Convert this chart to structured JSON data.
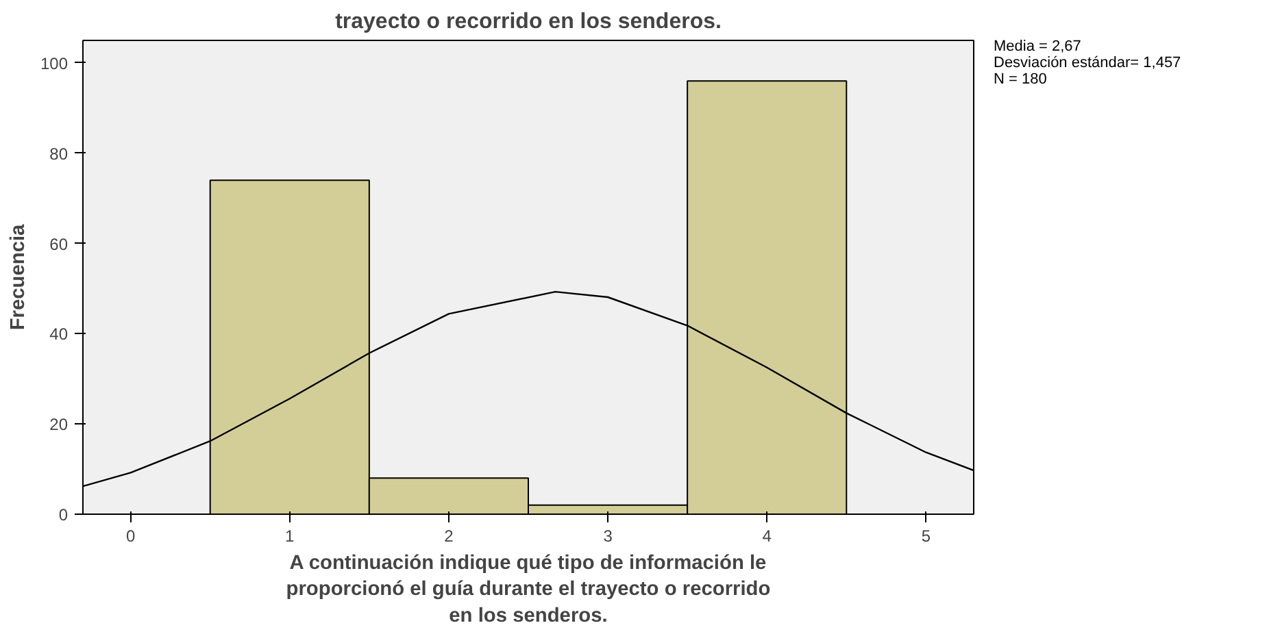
{
  "chart_data": {
    "type": "histogram",
    "title": "trayecto o recorrido en los senderos.",
    "xlabel": "A continuación indique qué tipo de información le proporcionó el guía durante el trayecto o recorrido en los senderos.",
    "ylabel": "Frecuencia",
    "bins": [
      0.5,
      1.5,
      2.5,
      3.5,
      4.5
    ],
    "values": [
      74,
      8,
      2,
      96
    ],
    "color": "#d3ce97",
    "series": [
      {
        "type": "line",
        "color": "#000000",
        "x": [
          -0.3,
          0,
          0.5,
          1,
          1.5,
          2,
          2.67,
          3,
          3.5,
          4,
          4.5,
          5,
          5.3
        ],
        "values": [
          6.2,
          9.2,
          16.2,
          25.6,
          35.7,
          44.4,
          49.3,
          48.1,
          41.8,
          32.5,
          22.4,
          13.7,
          9.7
        ]
      }
    ],
    "xlim": [
      -0.3,
      5.3
    ],
    "xticks": [
      0,
      1,
      2,
      3,
      4,
      5
    ],
    "ylim": [
      0,
      105
    ],
    "yticks": [
      0,
      20,
      40,
      60,
      80,
      100
    ],
    "grid": false,
    "annotations": [
      "Media = 2,67",
      "Desviación estándar= 1,457",
      "N = 180"
    ]
  }
}
